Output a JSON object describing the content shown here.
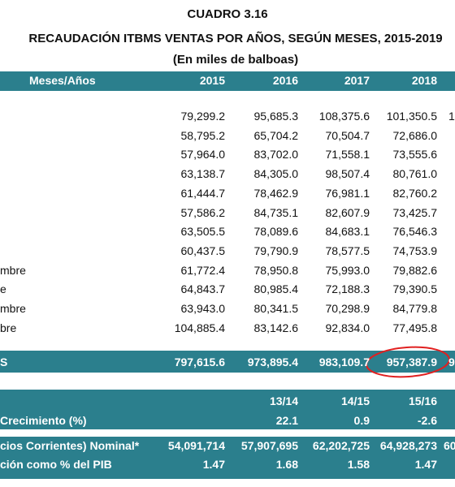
{
  "header": {
    "title": "CUADRO 3.16",
    "subtitle": "RECAUDACIÓN ITBMS VENTAS POR AÑOS, SEGÚN MESES, 2015-2019",
    "unit": "(En miles de balboas)"
  },
  "table": {
    "columns": [
      "Meses/Años",
      "2015",
      "2016",
      "2017",
      "2018"
    ],
    "rows": [
      {
        "values": [
          "79,299.2",
          "95,685.3",
          "108,375.6",
          "101,350.5"
        ],
        "extra": "1"
      },
      {
        "values": [
          "58,795.2",
          "65,704.2",
          "70,504.7",
          "72,686.0"
        ]
      },
      {
        "values": [
          "57,964.0",
          "83,702.0",
          "71,558.1",
          "73,555.6"
        ]
      },
      {
        "values": [
          "63,138.7",
          "84,305.0",
          "98,507.4",
          "80,761.0"
        ]
      },
      {
        "values": [
          "61,444.7",
          "78,462.9",
          "76,981.1",
          "82,760.2"
        ]
      },
      {
        "values": [
          "57,586.2",
          "84,735.1",
          "82,607.9",
          "73,425.7"
        ]
      },
      {
        "values": [
          "63,505.5",
          "78,089.6",
          "84,683.1",
          "76,546.3"
        ]
      },
      {
        "values": [
          "60,437.5",
          "79,790.9",
          "78,577.5",
          "74,753.9"
        ]
      },
      {
        "label": "mbre",
        "values": [
          "61,772.4",
          "78,950.8",
          "75,993.0",
          "79,882.6"
        ]
      },
      {
        "label": "e",
        "values": [
          "64,843.7",
          "80,985.4",
          "72,188.3",
          "79,390.5"
        ]
      },
      {
        "label": "mbre",
        "values": [
          "63,943.0",
          "80,341.5",
          "70,298.9",
          "84,779.8"
        ]
      },
      {
        "label": "bre",
        "values": [
          "104,885.4",
          "83,142.6",
          "92,834.0",
          "77,495.8"
        ]
      }
    ],
    "total": {
      "label": "S",
      "values": [
        "797,615.6",
        "973,895.4",
        "983,109.7",
        "957,387.9"
      ],
      "extra": "9"
    }
  },
  "growth": {
    "periods": [
      "13/14",
      "14/15",
      "15/16"
    ],
    "label": "Crecimiento (%)",
    "values": [
      "22.1",
      "0.9",
      "-2.6"
    ]
  },
  "gdp": [
    {
      "label": "cios Corrientes) Nominal*",
      "values": [
        "54,091,714",
        "57,907,695",
        "62,202,725",
        "64,928,273"
      ],
      "extra": "60"
    },
    {
      "label": "ción como % del PIB",
      "values": [
        "1.47",
        "1.68",
        "1.58",
        "1.47"
      ]
    }
  ]
}
